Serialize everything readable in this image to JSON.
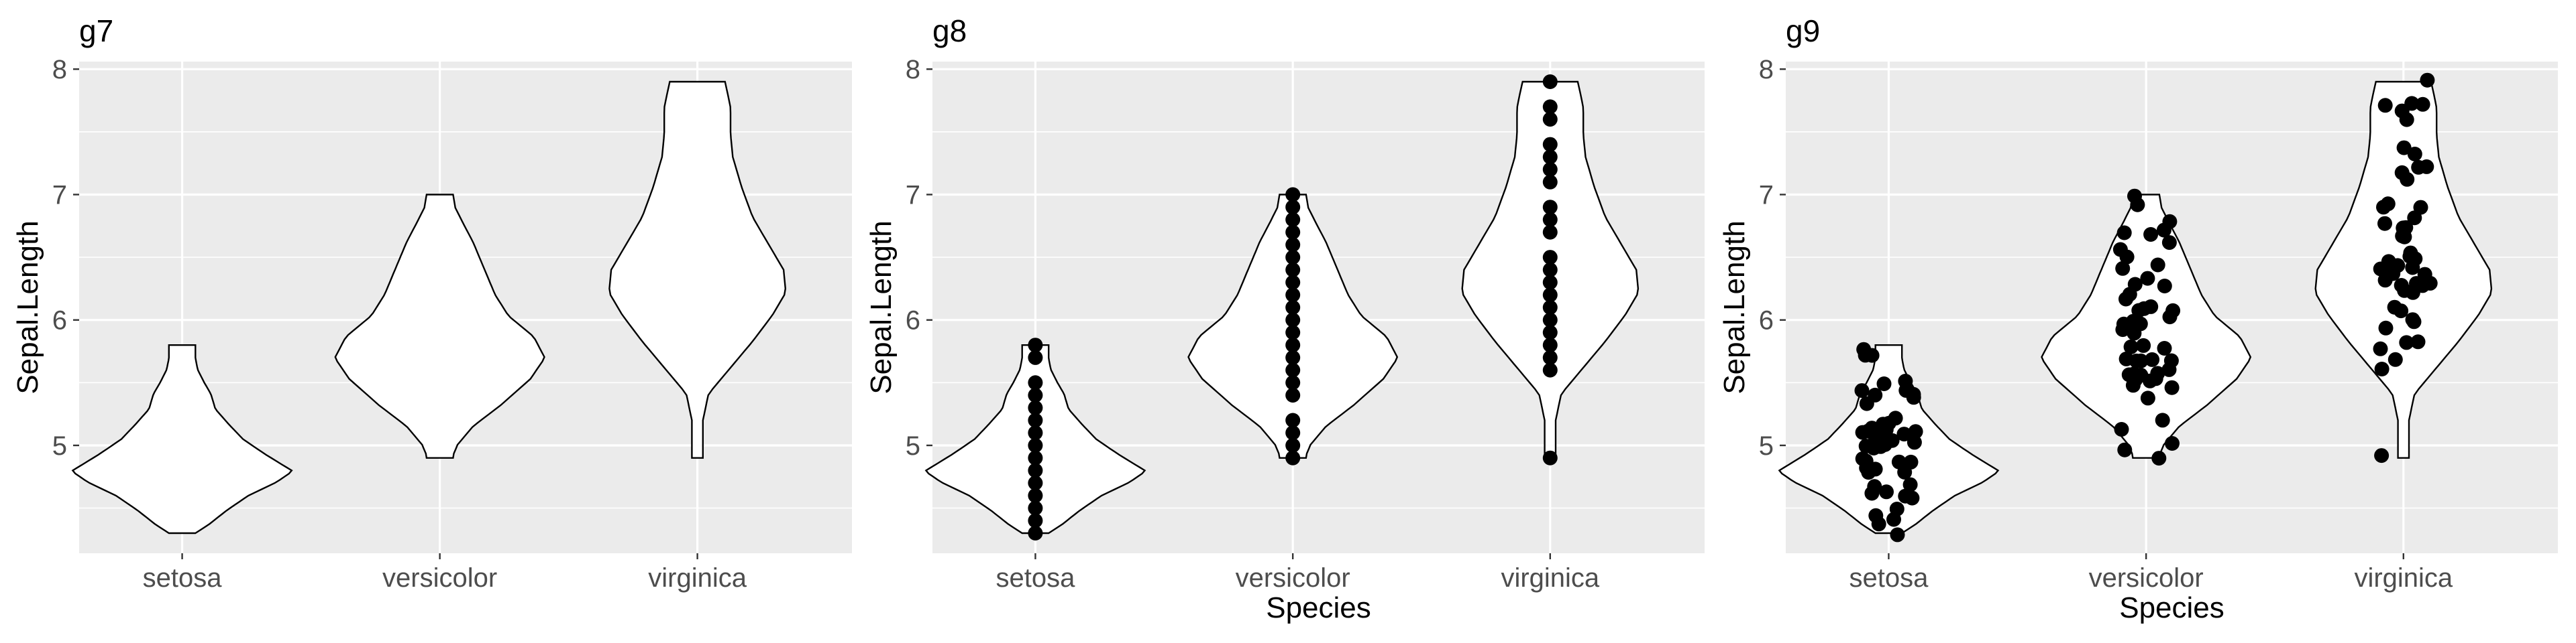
{
  "chart_data": [
    {
      "type": "violin",
      "title": "g7",
      "xlabel": "",
      "ylabel": "Sepal.Length",
      "categories": [
        "setosa",
        "versicolor",
        "virginica"
      ],
      "yticks": [
        5,
        6,
        7,
        8
      ],
      "ylim": [
        4.14,
        8.06
      ],
      "show_points": "none",
      "grid": true,
      "violins": [
        {
          "category": "setosa",
          "range": [
            4.3,
            5.8
          ]
        },
        {
          "category": "versicolor",
          "range": [
            4.9,
            7.0
          ]
        },
        {
          "category": "virginica",
          "range": [
            4.9,
            7.9
          ]
        }
      ],
      "points": []
    },
    {
      "type": "violin",
      "title": "g8",
      "xlabel": "Species",
      "ylabel": "Sepal.Length",
      "categories": [
        "setosa",
        "versicolor",
        "virginica"
      ],
      "yticks": [
        5,
        6,
        7,
        8
      ],
      "ylim": [
        4.14,
        8.06
      ],
      "show_points": "aligned",
      "grid": true,
      "violins": [
        {
          "category": "setosa",
          "range": [
            4.3,
            5.8
          ]
        },
        {
          "category": "versicolor",
          "range": [
            4.9,
            7.0
          ]
        },
        {
          "category": "virginica",
          "range": [
            4.9,
            7.9
          ]
        }
      ],
      "points": [
        {
          "category": "setosa",
          "y": [
            4.3,
            4.4,
            4.5,
            4.6,
            4.7,
            4.8,
            4.9,
            5.0,
            5.1,
            5.2,
            5.3,
            5.4,
            5.5,
            5.7,
            5.8
          ]
        },
        {
          "category": "versicolor",
          "y": [
            4.9,
            5.0,
            5.1,
            5.2,
            5.4,
            5.5,
            5.6,
            5.7,
            5.8,
            5.9,
            6.0,
            6.1,
            6.2,
            6.3,
            6.4,
            6.5,
            6.6,
            6.7,
            6.8,
            6.9,
            7.0
          ]
        },
        {
          "category": "virginica",
          "y": [
            4.9,
            5.6,
            5.7,
            5.8,
            5.9,
            6.0,
            6.1,
            6.2,
            6.3,
            6.4,
            6.5,
            6.7,
            6.8,
            6.9,
            7.1,
            7.2,
            7.3,
            7.4,
            7.6,
            7.7,
            7.9
          ]
        }
      ]
    },
    {
      "type": "violin",
      "title": "g9",
      "xlabel": "Species",
      "ylabel": "Sepal.Length",
      "categories": [
        "setosa",
        "versicolor",
        "virginica"
      ],
      "yticks": [
        5,
        6,
        7,
        8
      ],
      "ylim": [
        4.14,
        8.06
      ],
      "show_points": "jitter",
      "grid": true,
      "violins": [
        {
          "category": "setosa",
          "range": [
            4.3,
            5.8
          ]
        },
        {
          "category": "versicolor",
          "range": [
            4.9,
            7.0
          ]
        },
        {
          "category": "virginica",
          "range": [
            4.9,
            7.9
          ]
        }
      ],
      "points": [
        {
          "category": "setosa",
          "y": [
            5.1,
            4.9,
            4.7,
            4.6,
            5.0,
            5.4,
            4.6,
            5.0,
            4.4,
            4.9,
            5.4,
            4.8,
            4.8,
            4.3,
            5.8,
            5.7,
            5.4,
            5.1,
            5.7,
            5.1,
            5.4,
            5.1,
            4.6,
            5.1,
            4.8,
            5.0,
            5.0,
            5.2,
            5.2,
            4.7,
            4.8,
            5.4,
            5.2,
            5.5,
            4.9,
            5.0,
            5.5,
            4.9,
            4.4,
            5.1,
            5.0,
            4.5,
            4.4,
            5.0,
            5.1,
            4.8,
            5.1,
            4.6,
            5.3,
            5.0
          ]
        },
        {
          "category": "versicolor",
          "y": [
            7.0,
            6.4,
            6.9,
            5.5,
            6.5,
            5.7,
            6.3,
            4.9,
            6.6,
            5.2,
            5.0,
            5.9,
            6.0,
            6.1,
            5.6,
            6.7,
            5.6,
            5.8,
            6.2,
            5.6,
            5.9,
            6.1,
            6.3,
            6.1,
            6.4,
            6.6,
            6.8,
            6.7,
            6.0,
            5.7,
            5.5,
            5.5,
            5.8,
            6.0,
            5.4,
            6.0,
            6.7,
            6.3,
            5.6,
            5.5,
            5.5,
            6.1,
            5.8,
            5.0,
            5.6,
            5.7,
            5.7,
            6.2,
            5.1,
            5.7
          ]
        },
        {
          "category": "virginica",
          "y": [
            6.3,
            5.8,
            7.1,
            6.3,
            6.5,
            7.6,
            4.9,
            7.3,
            6.7,
            7.2,
            6.5,
            6.4,
            6.8,
            5.7,
            5.8,
            6.4,
            6.5,
            7.7,
            7.7,
            6.0,
            6.9,
            5.6,
            7.7,
            6.3,
            6.7,
            7.2,
            6.2,
            6.1,
            6.4,
            7.2,
            7.4,
            7.9,
            6.4,
            6.3,
            6.1,
            7.7,
            6.3,
            6.4,
            6.0,
            6.9,
            6.7,
            6.9,
            5.8,
            6.8,
            6.7,
            6.7,
            6.3,
            6.5,
            6.2,
            5.9
          ]
        }
      ]
    }
  ]
}
